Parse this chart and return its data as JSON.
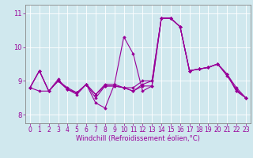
{
  "title": "",
  "xlabel": "Windchill (Refroidissement éolien,°C)",
  "ylabel": "",
  "bg_color": "#d0e8ee",
  "line_color": "#990099",
  "grid_color": "#ffffff",
  "xlim": [
    -0.5,
    23.5
  ],
  "ylim": [
    7.75,
    11.25
  ],
  "xticks": [
    0,
    1,
    2,
    3,
    4,
    5,
    6,
    7,
    8,
    9,
    10,
    11,
    12,
    13,
    14,
    15,
    16,
    17,
    18,
    19,
    20,
    21,
    22,
    23
  ],
  "yticks": [
    8,
    9,
    10,
    11
  ],
  "series1_x": [
    0,
    1,
    2,
    3,
    4,
    5,
    6,
    7,
    8,
    9,
    10,
    11,
    12,
    13,
    14,
    15,
    16,
    17,
    18,
    19,
    20,
    21,
    22,
    23
  ],
  "series1_y": [
    8.8,
    9.3,
    8.7,
    9.0,
    8.8,
    8.65,
    8.9,
    8.6,
    8.9,
    8.9,
    8.8,
    8.8,
    9.0,
    9.0,
    10.85,
    10.85,
    10.6,
    9.3,
    9.35,
    9.4,
    9.5,
    9.2,
    8.8,
    8.5
  ],
  "series2_x": [
    0,
    1,
    2,
    3,
    4,
    5,
    6,
    7,
    8,
    9,
    10,
    11,
    12,
    13,
    14,
    15,
    16,
    17,
    18,
    19,
    20,
    21,
    22,
    23
  ],
  "series2_y": [
    8.8,
    8.7,
    8.7,
    9.0,
    8.75,
    8.6,
    8.9,
    8.5,
    8.85,
    8.85,
    8.8,
    8.7,
    8.9,
    9.0,
    10.85,
    10.85,
    10.6,
    9.3,
    9.35,
    9.4,
    9.5,
    9.2,
    8.7,
    8.5
  ],
  "series3_x": [
    0,
    1,
    2,
    3,
    4,
    5,
    6,
    7,
    8,
    9,
    10,
    11,
    12,
    13,
    14,
    15,
    16,
    17,
    18,
    19,
    20,
    21,
    22,
    23
  ],
  "series3_y": [
    8.8,
    9.3,
    8.7,
    9.0,
    8.75,
    8.65,
    8.9,
    8.35,
    8.2,
    8.9,
    10.3,
    9.8,
    8.7,
    8.85,
    10.85,
    10.85,
    10.6,
    9.3,
    9.35,
    9.4,
    9.5,
    9.15,
    8.75,
    8.5
  ],
  "series4_x": [
    0,
    1,
    2,
    3,
    4,
    5,
    6,
    7,
    8,
    9,
    10,
    11,
    12,
    13,
    14,
    15,
    16,
    17,
    18,
    19,
    20,
    21,
    22,
    23
  ],
  "series4_y": [
    8.8,
    9.3,
    8.7,
    9.05,
    8.75,
    8.65,
    8.9,
    8.6,
    8.85,
    8.85,
    8.8,
    8.7,
    8.85,
    8.85,
    10.85,
    10.85,
    10.6,
    9.3,
    9.35,
    9.4,
    9.5,
    9.2,
    8.7,
    8.5
  ],
  "tick_fontsize": 5.5,
  "xlabel_fontsize": 6.0,
  "marker": "D",
  "marker_size": 1.8,
  "linewidth": 0.8
}
